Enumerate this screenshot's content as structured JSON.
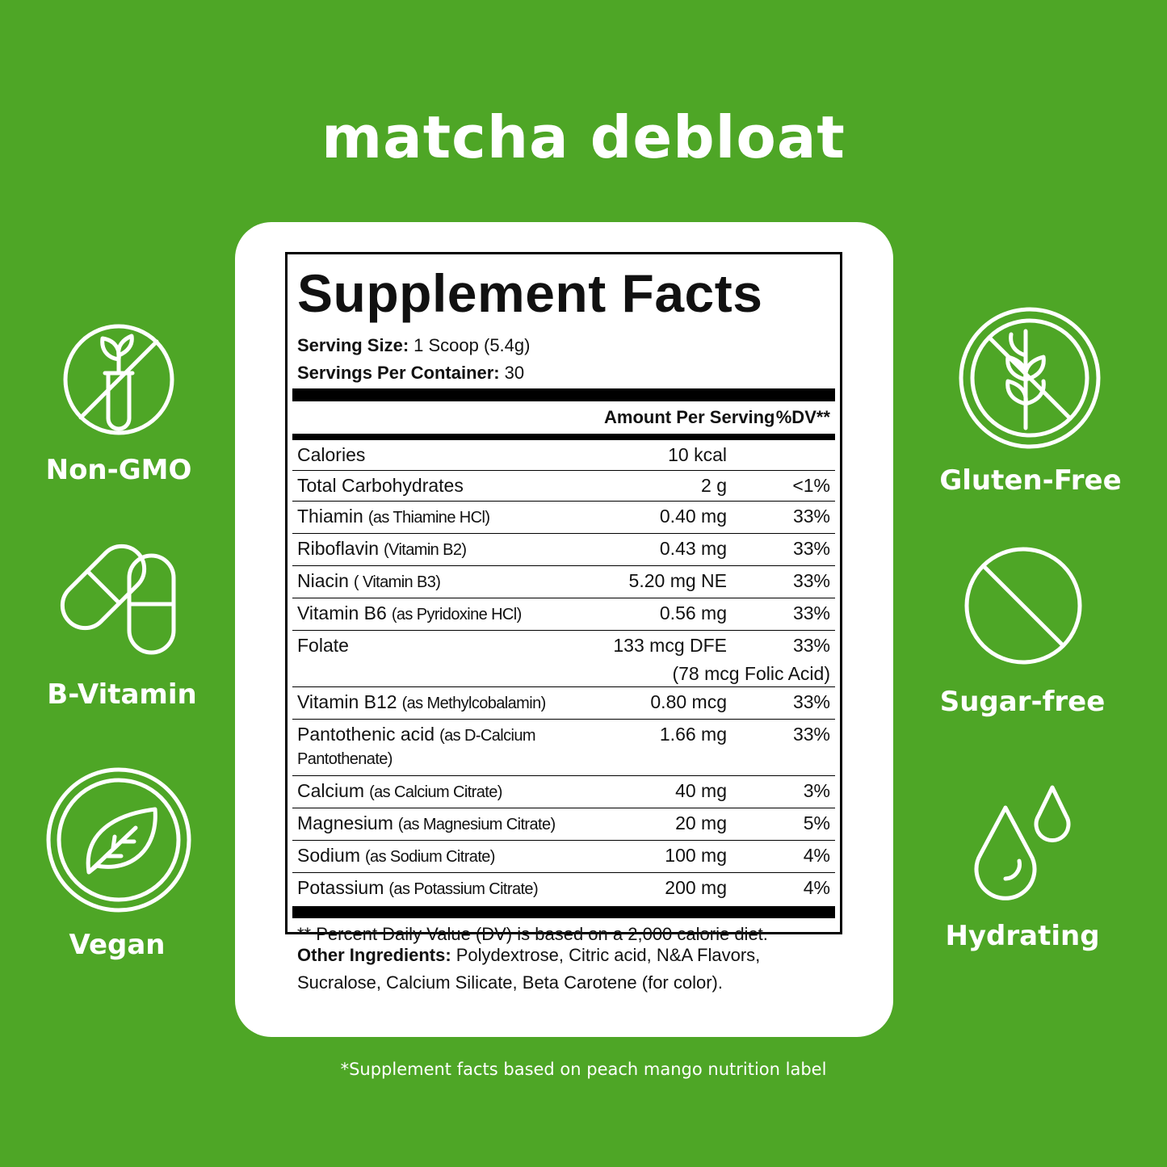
{
  "title": "matcha debloat",
  "badges_left": [
    {
      "label": "Non-GMO"
    },
    {
      "label": "B-Vitamin"
    },
    {
      "label": "Vegan"
    }
  ],
  "badges_right": [
    {
      "label": "Gluten-Free"
    },
    {
      "label": "Sugar-free"
    },
    {
      "label": "Hydrating"
    }
  ],
  "facts": {
    "heading": "Supplement Facts",
    "serving_size": {
      "label": "Serving Size:",
      "value": "1 Scoop (5.4g)"
    },
    "servings_per_container": {
      "label": "Servings Per Container:",
      "value": "30"
    },
    "columns": {
      "amount": "Amount Per Serving",
      "dv": "%DV**"
    },
    "rows": [
      {
        "name": "Calories",
        "amount": "10 kcal"
      },
      {
        "name": "Total Carbohydrates",
        "amount": "2 g",
        "dv": "<1%"
      },
      {
        "name": "Thiamin",
        "detail": "(as Thiamine HCl)",
        "amount": "0.40 mg",
        "dv": "33%"
      },
      {
        "name": "Riboflavin",
        "detail": "(Vitamin B2)",
        "amount": "0.43 mg",
        "dv": "33%"
      },
      {
        "name": "Niacin",
        "detail": "( Vitamin B3)",
        "amount": "5.20 mg NE",
        "dv": "33%"
      },
      {
        "name": "Vitamin B6",
        "detail": "(as Pyridoxine HCl)",
        "amount": "0.56 mg",
        "dv": "33%"
      },
      {
        "name": "Folate",
        "amount": "133 mcg DFE",
        "dv": "33%",
        "amount_note": "(78 mcg Folic Acid)"
      },
      {
        "name": "Vitamin B12",
        "detail": "(as Methylcobalamin)",
        "amount": "0.80 mcg",
        "dv": "33%"
      },
      {
        "name": "Pantothenic acid",
        "detail": "(as D-Calcium Pantothenate)",
        "amount": "1.66 mg",
        "dv": "33%"
      },
      {
        "name": "Calcium",
        "detail": "(as Calcium Citrate)",
        "amount": "40 mg",
        "dv": "3%"
      },
      {
        "name": "Magnesium",
        "detail": "(as Magnesium Citrate)",
        "amount": "20 mg",
        "dv": "5%"
      },
      {
        "name": "Sodium",
        "detail": "(as Sodium Citrate)",
        "amount": "100 mg",
        "dv": "4%"
      },
      {
        "name": "Potassium",
        "detail": "(as Potassium Citrate)",
        "amount": "200 mg",
        "dv": "4%"
      }
    ],
    "footnote": "** Percent Daily Value (DV) is based on a 2,000 calorie diet."
  },
  "other_ingredients": {
    "label": "Other Ingredients:",
    "text": "Polydextrose, Citric acid, N&A Flavors, Sucralose, Calcium Silicate, Beta Carotene (for color)."
  },
  "disclaimer": "*Supplement facts based on peach mango nutrition label"
}
